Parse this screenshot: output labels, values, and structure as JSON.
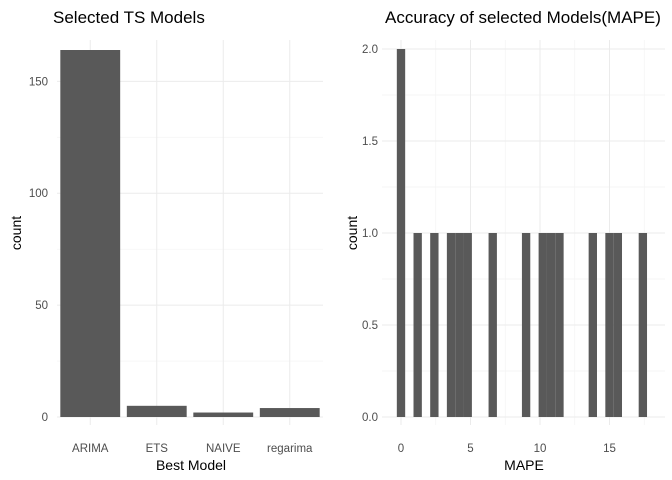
{
  "chart_data": [
    {
      "type": "bar",
      "title": "Selected TS Models",
      "xlabel": "Best Model",
      "ylabel": "count",
      "categories": [
        "ARIMA",
        "ETS",
        "NAIVE",
        "regarima"
      ],
      "values": [
        164,
        5,
        2,
        4
      ],
      "ylim": [
        0,
        170
      ],
      "yticks": [
        {
          "value": 0,
          "label": "0"
        },
        {
          "value": 50,
          "label": "50"
        },
        {
          "value": 100,
          "label": "100"
        },
        {
          "value": 150,
          "label": "150"
        }
      ],
      "grid": true
    },
    {
      "type": "bar",
      "title": "Accuracy of selected Models(MAPE)",
      "xlabel": "MAPE",
      "ylabel": "count",
      "bin_width": 0.6,
      "bins": [
        {
          "x": 0.0,
          "count": 2
        },
        {
          "x": 1.2,
          "count": 1
        },
        {
          "x": 2.4,
          "count": 1
        },
        {
          "x": 3.6,
          "count": 1
        },
        {
          "x": 4.2,
          "count": 1
        },
        {
          "x": 4.8,
          "count": 1
        },
        {
          "x": 6.6,
          "count": 1
        },
        {
          "x": 9.0,
          "count": 1
        },
        {
          "x": 10.2,
          "count": 1
        },
        {
          "x": 10.8,
          "count": 1
        },
        {
          "x": 11.4,
          "count": 1
        },
        {
          "x": 13.8,
          "count": 1
        },
        {
          "x": 15.0,
          "count": 1
        },
        {
          "x": 15.6,
          "count": 1
        },
        {
          "x": 17.4,
          "count": 1
        }
      ],
      "xlim": [
        -1.2,
        18.6
      ],
      "ylim": [
        -0.1,
        2.1
      ],
      "xticks": [
        {
          "value": 0,
          "label": "0"
        },
        {
          "value": 5,
          "label": "5"
        },
        {
          "value": 10,
          "label": "10"
        },
        {
          "value": 15,
          "label": "15"
        }
      ],
      "yticks": [
        {
          "value": 0,
          "label": "0.0"
        },
        {
          "value": 0.5,
          "label": "0.5"
        },
        {
          "value": 1,
          "label": "1.0"
        },
        {
          "value": 1.5,
          "label": "1.5"
        },
        {
          "value": 2,
          "label": "2.0"
        }
      ],
      "grid": true
    }
  ]
}
